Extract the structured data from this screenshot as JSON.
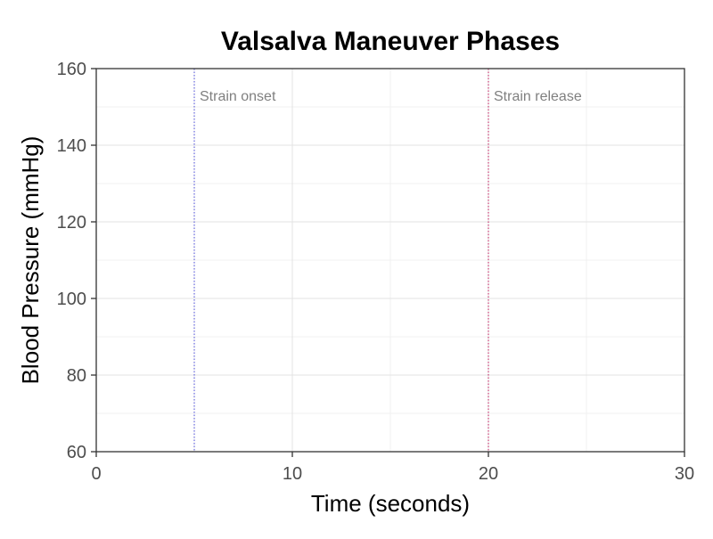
{
  "chart_data": {
    "type": "line",
    "title": "Valsalva Maneuver Phases",
    "xlabel": "Time (seconds)",
    "ylabel": "Blood Pressure (mmHg)",
    "xlim": [
      0,
      30
    ],
    "ylim": [
      60,
      160
    ],
    "x_ticks": [
      0,
      10,
      20,
      30
    ],
    "y_ticks": [
      60,
      80,
      100,
      120,
      140,
      160
    ],
    "x_minor_ticks": [
      5,
      15,
      25
    ],
    "y_minor_ticks": [
      70,
      90,
      110,
      130,
      150
    ],
    "grid": true,
    "series": [],
    "vlines": [
      {
        "x": 5,
        "label": "Strain onset",
        "color": "#4a4ad9",
        "style": "dotted"
      },
      {
        "x": 20,
        "label": "Strain release",
        "color": "#c2185b",
        "style": "dotted"
      }
    ]
  }
}
